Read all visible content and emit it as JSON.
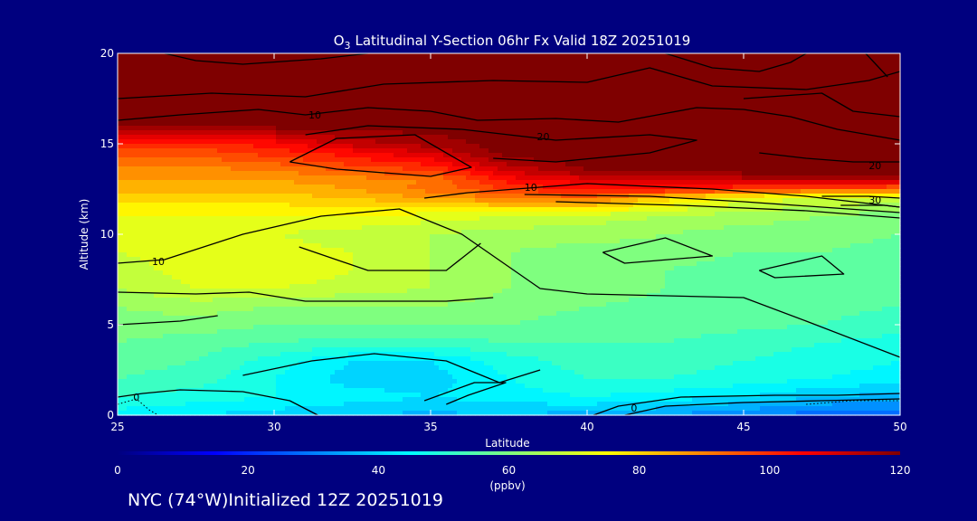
{
  "chart_data": {
    "type": "heatmap",
    "title": "Latitudinal Y-Section 06hr  Fx Valid 18Z 20251019",
    "title_species": "O",
    "title_species_sub": "3",
    "xlabel": "Latitude",
    "ylabel": "Altitude (km)",
    "xlim": [
      25,
      50
    ],
    "ylim": [
      0,
      20
    ],
    "x_ticks": [
      25,
      30,
      35,
      40,
      45,
      50
    ],
    "y_ticks": [
      0,
      5,
      10,
      15,
      20
    ],
    "x_tick_labels": [
      "25",
      "30",
      "35",
      "40",
      "45",
      "50"
    ],
    "y_tick_labels": [
      "0",
      "5",
      "10",
      "15",
      "20"
    ],
    "colorbar": {
      "min": 0,
      "max": 120,
      "ticks": [
        0,
        20,
        40,
        60,
        80,
        100,
        120
      ],
      "tick_labels": [
        "0",
        "20",
        "40",
        "60",
        "80",
        "100",
        "120"
      ],
      "units": "(ppbv)"
    },
    "grid_lat": [
      25,
      27.5,
      30,
      32.5,
      35,
      37.5,
      40,
      42.5,
      45,
      47.5,
      50
    ],
    "grid_alt": [
      0,
      1,
      2,
      3,
      4,
      5,
      6,
      7,
      8,
      9,
      10,
      11,
      12,
      12.5,
      13,
      13.5,
      14,
      14.5,
      15,
      16,
      17,
      18,
      19,
      20
    ],
    "ozone_ppbv": [
      [
        44,
        42,
        40,
        38,
        37,
        38,
        36,
        34,
        30,
        28,
        27
      ],
      [
        50,
        48,
        46,
        44,
        42,
        44,
        46,
        44,
        42,
        38,
        36
      ],
      [
        54,
        52,
        46,
        40,
        40,
        46,
        50,
        50,
        48,
        46,
        44
      ],
      [
        56,
        54,
        48,
        42,
        42,
        48,
        52,
        52,
        50,
        48,
        46
      ],
      [
        58,
        56,
        54,
        52,
        52,
        54,
        54,
        54,
        52,
        50,
        48
      ],
      [
        60,
        60,
        58,
        58,
        58,
        58,
        56,
        56,
        55,
        54,
        52
      ],
      [
        62,
        64,
        62,
        62,
        62,
        60,
        58,
        57,
        56,
        55,
        54
      ],
      [
        66,
        70,
        70,
        68,
        66,
        62,
        60,
        58,
        56,
        55,
        54
      ],
      [
        68,
        72,
        74,
        70,
        66,
        62,
        60,
        58,
        56,
        56,
        55
      ],
      [
        70,
        72,
        72,
        70,
        66,
        62,
        60,
        60,
        58,
        58,
        56
      ],
      [
        72,
        70,
        70,
        68,
        66,
        64,
        64,
        62,
        60,
        60,
        58
      ],
      [
        74,
        74,
        74,
        74,
        72,
        70,
        68,
        66,
        64,
        62,
        60
      ],
      [
        80,
        80,
        80,
        82,
        86,
        90,
        92,
        80,
        72,
        70,
        68
      ],
      [
        84,
        84,
        84,
        86,
        92,
        98,
        104,
        104,
        98,
        96,
        92
      ],
      [
        86,
        86,
        86,
        88,
        90,
        104,
        108,
        110,
        112,
        114,
        114
      ],
      [
        88,
        88,
        90,
        94,
        98,
        110,
        118,
        120,
        120,
        120,
        120
      ],
      [
        92,
        92,
        95,
        100,
        104,
        116,
        120,
        120,
        120,
        120,
        120
      ],
      [
        96,
        96,
        100,
        104,
        110,
        120,
        120,
        120,
        120,
        120,
        120
      ],
      [
        100,
        100,
        104,
        112,
        116,
        120,
        120,
        120,
        120,
        120,
        120
      ],
      [
        120,
        118,
        120,
        120,
        120,
        120,
        120,
        120,
        120,
        120,
        120
      ],
      [
        120,
        120,
        120,
        120,
        120,
        120,
        120,
        120,
        120,
        120,
        120
      ],
      [
        120,
        120,
        120,
        120,
        120,
        120,
        120,
        120,
        120,
        120,
        120
      ],
      [
        120,
        120,
        120,
        120,
        120,
        120,
        120,
        120,
        120,
        120,
        120
      ],
      [
        120,
        120,
        120,
        120,
        120,
        120,
        120,
        120,
        120,
        120,
        120
      ]
    ],
    "contour_lines": [
      {
        "label": "0",
        "label_at": [
          25.6,
          1.0
        ],
        "points": [
          [
            25,
            1.0
          ],
          [
            25.8,
            1.2
          ],
          [
            27,
            1.4
          ],
          [
            29,
            1.3
          ],
          [
            30.5,
            0.8
          ],
          [
            31.4,
            0
          ]
        ]
      },
      {
        "label": "",
        "label_at": null,
        "points": [
          [
            34.8,
            0.8
          ],
          [
            36.4,
            1.8
          ],
          [
            37.4,
            1.8
          ],
          [
            36.2,
            1.1
          ],
          [
            35.5,
            0.6
          ]
        ]
      },
      {
        "label": "0",
        "label_at": [
          41.5,
          0.4
        ],
        "points": [
          [
            40.2,
            0
          ],
          [
            41,
            0.5
          ],
          [
            43,
            1.0
          ],
          [
            46,
            1.1
          ],
          [
            48,
            1.1
          ],
          [
            50,
            1.2
          ]
        ]
      },
      {
        "label": "",
        "label_at": null,
        "points": [
          [
            41.2,
            0
          ],
          [
            42.5,
            0.5
          ],
          [
            45,
            0.7
          ],
          [
            47.5,
            0.8
          ],
          [
            50,
            0.9
          ]
        ]
      },
      {
        "label": "",
        "label_at": null,
        "points": [
          [
            29,
            2.2
          ],
          [
            31.2,
            3.0
          ],
          [
            33.2,
            3.4
          ],
          [
            35.5,
            3.0
          ],
          [
            37.2,
            1.8
          ],
          [
            38.5,
            2.5
          ]
        ]
      },
      {
        "label": "",
        "label_at": null,
        "points": [
          [
            30.8,
            9.3
          ],
          [
            33,
            8.0
          ],
          [
            35.5,
            8.0
          ],
          [
            36.6,
            9.5
          ]
        ]
      },
      {
        "label": "10",
        "label_at": [
          26.3,
          8.5
        ],
        "points": [
          [
            25,
            8.4
          ],
          [
            26.5,
            8.6
          ],
          [
            29,
            10.0
          ],
          [
            31.5,
            11.0
          ],
          [
            34,
            11.4
          ],
          [
            36,
            10.0
          ],
          [
            38.5,
            7.0
          ],
          [
            40,
            6.7
          ],
          [
            45,
            6.5
          ],
          [
            47,
            5.2
          ],
          [
            50,
            3.2
          ]
        ]
      },
      {
        "label": "",
        "label_at": null,
        "points": [
          [
            25,
            6.8
          ],
          [
            27.5,
            6.7
          ],
          [
            29.2,
            6.8
          ],
          [
            31,
            6.3
          ],
          [
            33.2,
            6.3
          ],
          [
            35.5,
            6.3
          ],
          [
            37,
            6.5
          ]
        ]
      },
      {
        "label": "",
        "label_at": null,
        "points": [
          [
            25,
            5.0
          ],
          [
            27,
            5.2
          ],
          [
            28.2,
            5.5
          ]
        ]
      },
      {
        "label": "",
        "label_at": null,
        "points": [
          [
            40.5,
            9.0
          ],
          [
            42.5,
            9.8
          ],
          [
            44,
            8.8
          ],
          [
            41.2,
            8.4
          ],
          [
            40.5,
            9.0
          ]
        ]
      },
      {
        "label": "",
        "label_at": null,
        "points": [
          [
            45.5,
            8.0
          ],
          [
            47.5,
            8.8
          ],
          [
            48.2,
            7.8
          ],
          [
            46,
            7.6
          ],
          [
            45.5,
            8.0
          ]
        ]
      },
      {
        "label": "10",
        "label_at": [
          38.2,
          12.6
        ],
        "points": [
          [
            34.8,
            12.0
          ],
          [
            36.2,
            12.3
          ],
          [
            40,
            12.8
          ],
          [
            44,
            12.5
          ],
          [
            47,
            12.1
          ],
          [
            50,
            11.5
          ]
        ]
      },
      {
        "label": "",
        "label_at": null,
        "points": [
          [
            38,
            12.2
          ],
          [
            42,
            12.1
          ],
          [
            45,
            11.8
          ],
          [
            50,
            11.2
          ]
        ]
      },
      {
        "label": "",
        "label_at": null,
        "points": [
          [
            39,
            11.8
          ],
          [
            43,
            11.6
          ],
          [
            47,
            11.3
          ],
          [
            50,
            10.9
          ]
        ]
      },
      {
        "label": "30",
        "label_at": [
          49.2,
          11.9
        ],
        "points": [
          [
            47.5,
            12.1
          ],
          [
            49,
            12.1
          ],
          [
            50,
            12.0
          ]
        ]
      },
      {
        "label": "",
        "label_at": null,
        "points": [
          [
            48.1,
            11.6
          ],
          [
            49.5,
            11.6
          ],
          [
            50,
            11.5
          ]
        ]
      },
      {
        "label": "",
        "label_at": null,
        "points": [
          [
            30.5,
            14.0
          ],
          [
            32,
            15.3
          ],
          [
            34.5,
            15.5
          ],
          [
            36.3,
            13.7
          ],
          [
            35,
            13.2
          ],
          [
            32,
            13.6
          ],
          [
            30.5,
            14.0
          ]
        ]
      },
      {
        "label": "20",
        "label_at": [
          38.6,
          15.4
        ],
        "points": [
          [
            31,
            15.5
          ],
          [
            33,
            16.0
          ],
          [
            36,
            15.8
          ],
          [
            39,
            15.2
          ],
          [
            42,
            15.5
          ],
          [
            43.5,
            15.2
          ],
          [
            42,
            14.5
          ],
          [
            39,
            14.0
          ],
          [
            37,
            14.2
          ]
        ]
      },
      {
        "label": "20",
        "label_at": [
          49.2,
          13.8
        ],
        "points": [
          [
            45.5,
            14.5
          ],
          [
            47,
            14.2
          ],
          [
            48.5,
            14.0
          ],
          [
            50,
            14.0
          ]
        ]
      },
      {
        "label": "10",
        "label_at": [
          31.3,
          16.6
        ],
        "points": [
          [
            25,
            16.3
          ],
          [
            27,
            16.6
          ],
          [
            29.5,
            16.9
          ],
          [
            31,
            16.6
          ],
          [
            33,
            17.0
          ],
          [
            35,
            16.8
          ],
          [
            36.5,
            16.3
          ],
          [
            39,
            16.4
          ],
          [
            41,
            16.2
          ],
          [
            43.5,
            17.0
          ],
          [
            45,
            16.9
          ],
          [
            46.5,
            16.5
          ],
          [
            48,
            15.8
          ],
          [
            50,
            15.2
          ]
        ]
      },
      {
        "label": "",
        "label_at": null,
        "points": [
          [
            25,
            17.5
          ],
          [
            28,
            17.8
          ],
          [
            31,
            17.6
          ],
          [
            33.5,
            18.3
          ],
          [
            37,
            18.5
          ],
          [
            40,
            18.4
          ],
          [
            42,
            19.2
          ],
          [
            44,
            18.2
          ],
          [
            47,
            18.0
          ],
          [
            49,
            18.5
          ],
          [
            50,
            19.0
          ]
        ]
      },
      {
        "label": "",
        "label_at": null,
        "points": [
          [
            26.5,
            20
          ],
          [
            27.5,
            19.6
          ],
          [
            29,
            19.4
          ],
          [
            31.5,
            19.7
          ],
          [
            33,
            20
          ]
        ]
      },
      {
        "label": "",
        "label_at": null,
        "points": [
          [
            42.5,
            20
          ],
          [
            44,
            19.2
          ],
          [
            45.5,
            19.0
          ],
          [
            46.5,
            19.5
          ],
          [
            47,
            20
          ]
        ]
      },
      {
        "label": "",
        "label_at": null,
        "points": [
          [
            48.9,
            20
          ],
          [
            49.6,
            18.7
          ]
        ]
      },
      {
        "label": "",
        "label_at": null,
        "points": [
          [
            45,
            17.5
          ],
          [
            47.5,
            17.8
          ],
          [
            48.5,
            16.8
          ],
          [
            50,
            16.5
          ]
        ]
      }
    ],
    "dotted_lines": [
      {
        "points": [
          [
            25,
            0.6
          ],
          [
            25.6,
            0.9
          ],
          [
            26,
            0.3
          ],
          [
            26.3,
            0
          ]
        ]
      },
      {
        "points": [
          [
            47,
            0.6
          ],
          [
            48.5,
            0.8
          ],
          [
            50,
            0.8
          ]
        ]
      }
    ],
    "footer_prefix": "NYC (74",
    "footer_suffix": "W)Initialized 12Z 20251019",
    "degree_symbol": "°"
  },
  "colors": {
    "background": "#00007f",
    "text": "#ffffff",
    "contour": "#000000",
    "colormap": [
      "#00007f",
      "#0000ff",
      "#007fff",
      "#00ffff",
      "#7fff7f",
      "#ffff00",
      "#ff7f00",
      "#ff0000",
      "#7f0000"
    ]
  }
}
